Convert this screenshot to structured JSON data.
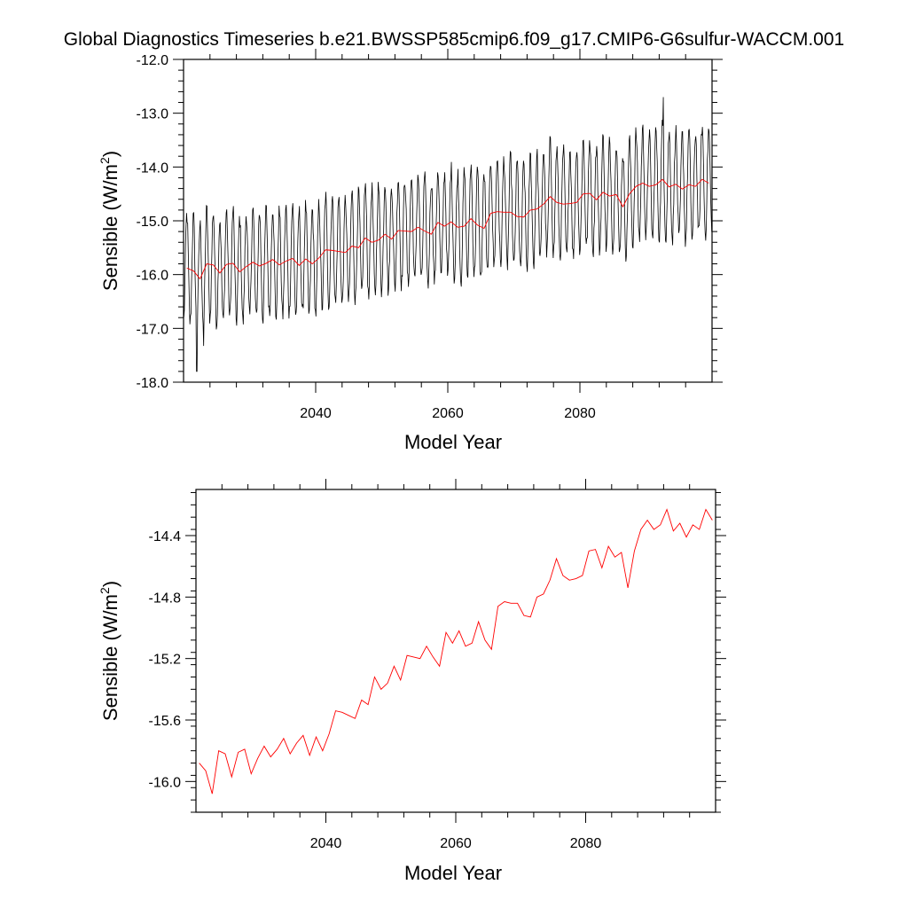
{
  "figure": {
    "title": "Global Diagnostics Timeseries b.e21.BWSSP585cmip6.f09_g17.CMIP6-G6sulfur-WACCM.001"
  },
  "colors": {
    "monthly": "#000000",
    "annual": "#ff0000",
    "axes": "#000000"
  },
  "chart_data": [
    {
      "type": "line",
      "xlabel": "Model Year",
      "ylabel": "Sensible (W/m",
      "ylabel_sup": "2",
      "ylabel_close": ")",
      "xlim": [
        2020,
        2100
      ],
      "ylim": [
        -18.0,
        -12.0
      ],
      "xticks": [
        2040,
        2060,
        2080
      ],
      "xtick_labels": [
        "2040",
        "2060",
        "2080"
      ],
      "yticks": [
        -18.0,
        -17.0,
        -16.0,
        -15.0,
        -14.0,
        -13.0,
        -12.0
      ],
      "ytick_labels": [
        "-18.0",
        "-17.0",
        "-16.0",
        "-15.0",
        "-14.0",
        "-13.0",
        "-12.0"
      ],
      "grid": false,
      "series": [
        {
          "type": "monthly",
          "description_values": "monthly oscillation around annual mean",
          "x_start": 2020.04,
          "x_step": 0.0833333,
          "seasonal_amplitude": 0.95,
          "peak_value_2092": -12.7,
          "min_value_2022": -17.8
        },
        {
          "type": "annual",
          "x": [
            2020,
            2021,
            2022,
            2023,
            2024,
            2025,
            2026,
            2027,
            2028,
            2029,
            2030,
            2031,
            2032,
            2033,
            2034,
            2035,
            2036,
            2037,
            2038,
            2039,
            2040,
            2041,
            2042,
            2043,
            2044,
            2045,
            2046,
            2047,
            2048,
            2049,
            2050,
            2051,
            2052,
            2053,
            2054,
            2055,
            2056,
            2057,
            2058,
            2059,
            2060,
            2061,
            2062,
            2063,
            2064,
            2065,
            2066,
            2067,
            2068,
            2069,
            2070,
            2071,
            2072,
            2073,
            2074,
            2075,
            2076,
            2077,
            2078,
            2079,
            2080,
            2081,
            2082,
            2083,
            2084,
            2085,
            2086,
            2087,
            2088,
            2089,
            2090,
            2091,
            2092,
            2093,
            2094,
            2095,
            2096,
            2097,
            2098,
            2099
          ],
          "values": [
            -15.88,
            -15.93,
            -16.08,
            -15.8,
            -15.82,
            -15.97,
            -15.81,
            -15.79,
            -15.95,
            -15.85,
            -15.77,
            -15.84,
            -15.79,
            -15.72,
            -15.82,
            -15.75,
            -15.7,
            -15.83,
            -15.71,
            -15.8,
            -15.69,
            -15.54,
            -15.55,
            -15.57,
            -15.59,
            -15.47,
            -15.5,
            -15.32,
            -15.4,
            -15.36,
            -15.25,
            -15.34,
            -15.18,
            -15.19,
            -15.2,
            -15.12,
            -15.19,
            -15.25,
            -15.03,
            -15.1,
            -15.02,
            -15.12,
            -15.1,
            -14.96,
            -15.08,
            -15.14,
            -14.86,
            -14.83,
            -14.84,
            -14.84,
            -14.92,
            -14.93,
            -14.8,
            -14.78,
            -14.69,
            -14.55,
            -14.66,
            -14.69,
            -14.68,
            -14.66,
            -14.5,
            -14.49,
            -14.61,
            -14.47,
            -14.54,
            -14.51,
            -14.74,
            -14.5,
            -14.36,
            -14.3,
            -14.36,
            -14.33,
            -14.23,
            -14.37,
            -14.32,
            -14.41,
            -14.33,
            -14.36,
            -14.23,
            -14.3
          ]
        }
      ]
    },
    {
      "type": "line",
      "xlabel": "Model Year",
      "ylabel": "Sensible (W/m",
      "ylabel_sup": "2",
      "ylabel_close": ")",
      "xlim": [
        2020,
        2100
      ],
      "ylim": [
        -16.2,
        -14.1
      ],
      "xticks": [
        2040,
        2060,
        2080
      ],
      "xtick_labels": [
        "2040",
        "2060",
        "2080"
      ],
      "yticks": [
        -16.0,
        -15.6,
        -15.2,
        -14.8,
        -14.4
      ],
      "ytick_labels": [
        "-16.0",
        "-15.6",
        "-15.2",
        "-14.8",
        "-14.4"
      ],
      "grid": false,
      "series": [
        {
          "type": "annual",
          "x": [
            2020,
            2021,
            2022,
            2023,
            2024,
            2025,
            2026,
            2027,
            2028,
            2029,
            2030,
            2031,
            2032,
            2033,
            2034,
            2035,
            2036,
            2037,
            2038,
            2039,
            2040,
            2041,
            2042,
            2043,
            2044,
            2045,
            2046,
            2047,
            2048,
            2049,
            2050,
            2051,
            2052,
            2053,
            2054,
            2055,
            2056,
            2057,
            2058,
            2059,
            2060,
            2061,
            2062,
            2063,
            2064,
            2065,
            2066,
            2067,
            2068,
            2069,
            2070,
            2071,
            2072,
            2073,
            2074,
            2075,
            2076,
            2077,
            2078,
            2079,
            2080,
            2081,
            2082,
            2083,
            2084,
            2085,
            2086,
            2087,
            2088,
            2089,
            2090,
            2091,
            2092,
            2093,
            2094,
            2095,
            2096,
            2097,
            2098,
            2099
          ],
          "values": [
            -15.88,
            -15.93,
            -16.08,
            -15.8,
            -15.82,
            -15.97,
            -15.81,
            -15.79,
            -15.95,
            -15.85,
            -15.77,
            -15.84,
            -15.79,
            -15.72,
            -15.82,
            -15.75,
            -15.7,
            -15.83,
            -15.71,
            -15.8,
            -15.69,
            -15.54,
            -15.55,
            -15.57,
            -15.59,
            -15.47,
            -15.5,
            -15.32,
            -15.4,
            -15.36,
            -15.25,
            -15.34,
            -15.18,
            -15.19,
            -15.2,
            -15.12,
            -15.19,
            -15.25,
            -15.03,
            -15.1,
            -15.02,
            -15.12,
            -15.1,
            -14.96,
            -15.08,
            -15.14,
            -14.86,
            -14.83,
            -14.84,
            -14.84,
            -14.92,
            -14.93,
            -14.8,
            -14.78,
            -14.69,
            -14.55,
            -14.66,
            -14.69,
            -14.68,
            -14.66,
            -14.5,
            -14.49,
            -14.61,
            -14.47,
            -14.54,
            -14.51,
            -14.74,
            -14.5,
            -14.36,
            -14.3,
            -14.36,
            -14.33,
            -14.23,
            -14.37,
            -14.32,
            -14.41,
            -14.33,
            -14.36,
            -14.23,
            -14.3
          ]
        }
      ]
    }
  ]
}
